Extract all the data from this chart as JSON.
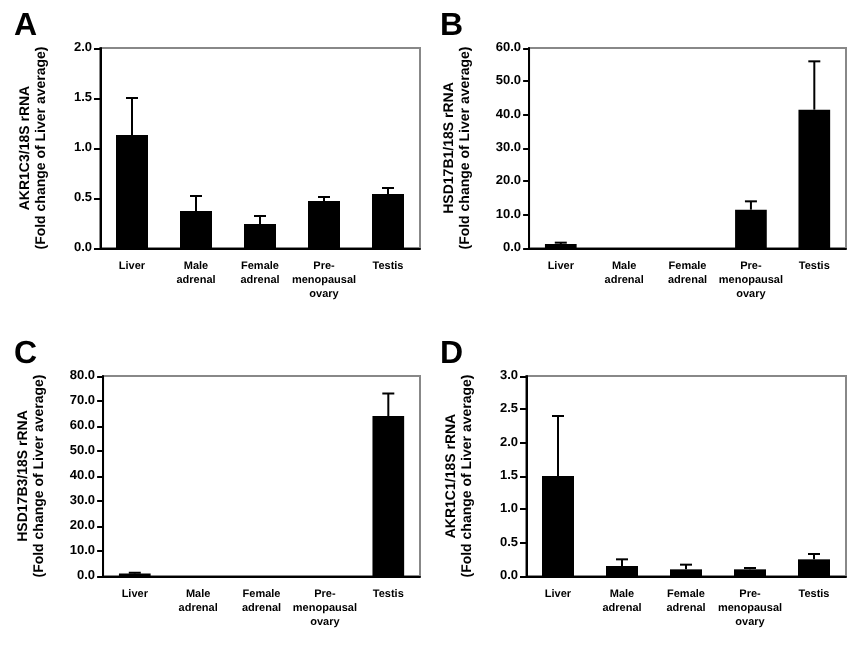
{
  "chart_data": [
    {
      "type": "bar",
      "title": "A",
      "ylabel": "AKR1C3/18S rRNA\n(Fold change of Liver average)",
      "categories": [
        "Liver",
        "Male\nadrenal",
        "Female\nadrenal",
        "Pre-\nmenopausal\novary",
        "Testis"
      ],
      "values": [
        1.13,
        0.37,
        0.24,
        0.47,
        0.54
      ],
      "errors": [
        [
          1.13,
          1.5
        ],
        [
          0.37,
          0.52
        ],
        [
          0.24,
          0.32
        ],
        [
          0.47,
          0.51
        ],
        [
          0.54,
          0.6
        ]
      ],
      "color": "#000000",
      "ylim": [
        0,
        2
      ],
      "yticks": [
        {
          "value": 0,
          "label": "0.0"
        },
        {
          "value": 0.5,
          "label": "0.5"
        },
        {
          "value": 1,
          "label": "1.0"
        },
        {
          "value": 1.5,
          "label": "1.5"
        },
        {
          "value": 2,
          "label": "2.0"
        }
      ],
      "grid": false
    },
    {
      "type": "bar",
      "title": "B",
      "ylabel": "HSD17B1/18S rRNA\n(Fold change of Liver average)",
      "categories": [
        "Liver",
        "Male\nadrenal",
        "Female\nadrenal",
        "Pre-\nmenopausal\novary",
        "Testis"
      ],
      "values": [
        1.2,
        null,
        null,
        11.5,
        41.5
      ],
      "errors": [
        [
          1.2,
          1.6
        ],
        null,
        null,
        [
          11.5,
          14
        ],
        [
          41.5,
          56
        ]
      ],
      "color": "#000000",
      "ylim": [
        0,
        60
      ],
      "yticks": [
        {
          "value": 0,
          "label": "0.0"
        },
        {
          "value": 10,
          "label": "10.0"
        },
        {
          "value": 20,
          "label": "20.0"
        },
        {
          "value": 30,
          "label": "30.0"
        },
        {
          "value": 40,
          "label": "40.0"
        },
        {
          "value": 50,
          "label": "50.0"
        },
        {
          "value": 60,
          "label": "60.0"
        }
      ],
      "grid": false
    },
    {
      "type": "bar",
      "title": "C",
      "ylabel": "HSD17B3/18S rRNA\n(Fold change of Liver average)",
      "categories": [
        "Liver",
        "Male\nadrenal",
        "Female\nadrenal",
        "Pre-\nmenopausal\novary",
        "Testis"
      ],
      "values": [
        1.0,
        null,
        null,
        null,
        64
      ],
      "errors": [
        [
          1.0,
          1.3
        ],
        null,
        null,
        null,
        [
          64,
          73
        ]
      ],
      "color": "#000000",
      "ylim": [
        0,
        80
      ],
      "yticks": [
        {
          "value": 0,
          "label": "0.0"
        },
        {
          "value": 10,
          "label": "10.0"
        },
        {
          "value": 20,
          "label": "20.0"
        },
        {
          "value": 30,
          "label": "30.0"
        },
        {
          "value": 40,
          "label": "40.0"
        },
        {
          "value": 50,
          "label": "50.0"
        },
        {
          "value": 60,
          "label": "60.0"
        },
        {
          "value": 70,
          "label": "70.0"
        },
        {
          "value": 80,
          "label": "80.0"
        }
      ],
      "grid": false
    },
    {
      "type": "bar",
      "title": "D",
      "ylabel": "AKR1C1/18S rRNA\n(Fold change of Liver average)",
      "categories": [
        "Liver",
        "Male\nadrenal",
        "Female\nadrenal",
        "Pre-\nmenopausal\novary",
        "Testis"
      ],
      "values": [
        1.5,
        0.15,
        0.1,
        0.1,
        0.25
      ],
      "errors": [
        [
          1.5,
          2.4
        ],
        [
          0.15,
          0.25
        ],
        [
          0.1,
          0.17
        ],
        [
          0.1,
          0.12
        ],
        [
          0.25,
          0.33
        ]
      ],
      "color": "#000000",
      "ylim": [
        0,
        3
      ],
      "yticks": [
        {
          "value": 0,
          "label": "0.0"
        },
        {
          "value": 0.5,
          "label": "0.5"
        },
        {
          "value": 1,
          "label": "1.0"
        },
        {
          "value": 1.5,
          "label": "1.5"
        },
        {
          "value": 2,
          "label": "2.0"
        },
        {
          "value": 2.5,
          "label": "2.5"
        },
        {
          "value": 3,
          "label": "3.0"
        }
      ],
      "grid": false
    }
  ]
}
